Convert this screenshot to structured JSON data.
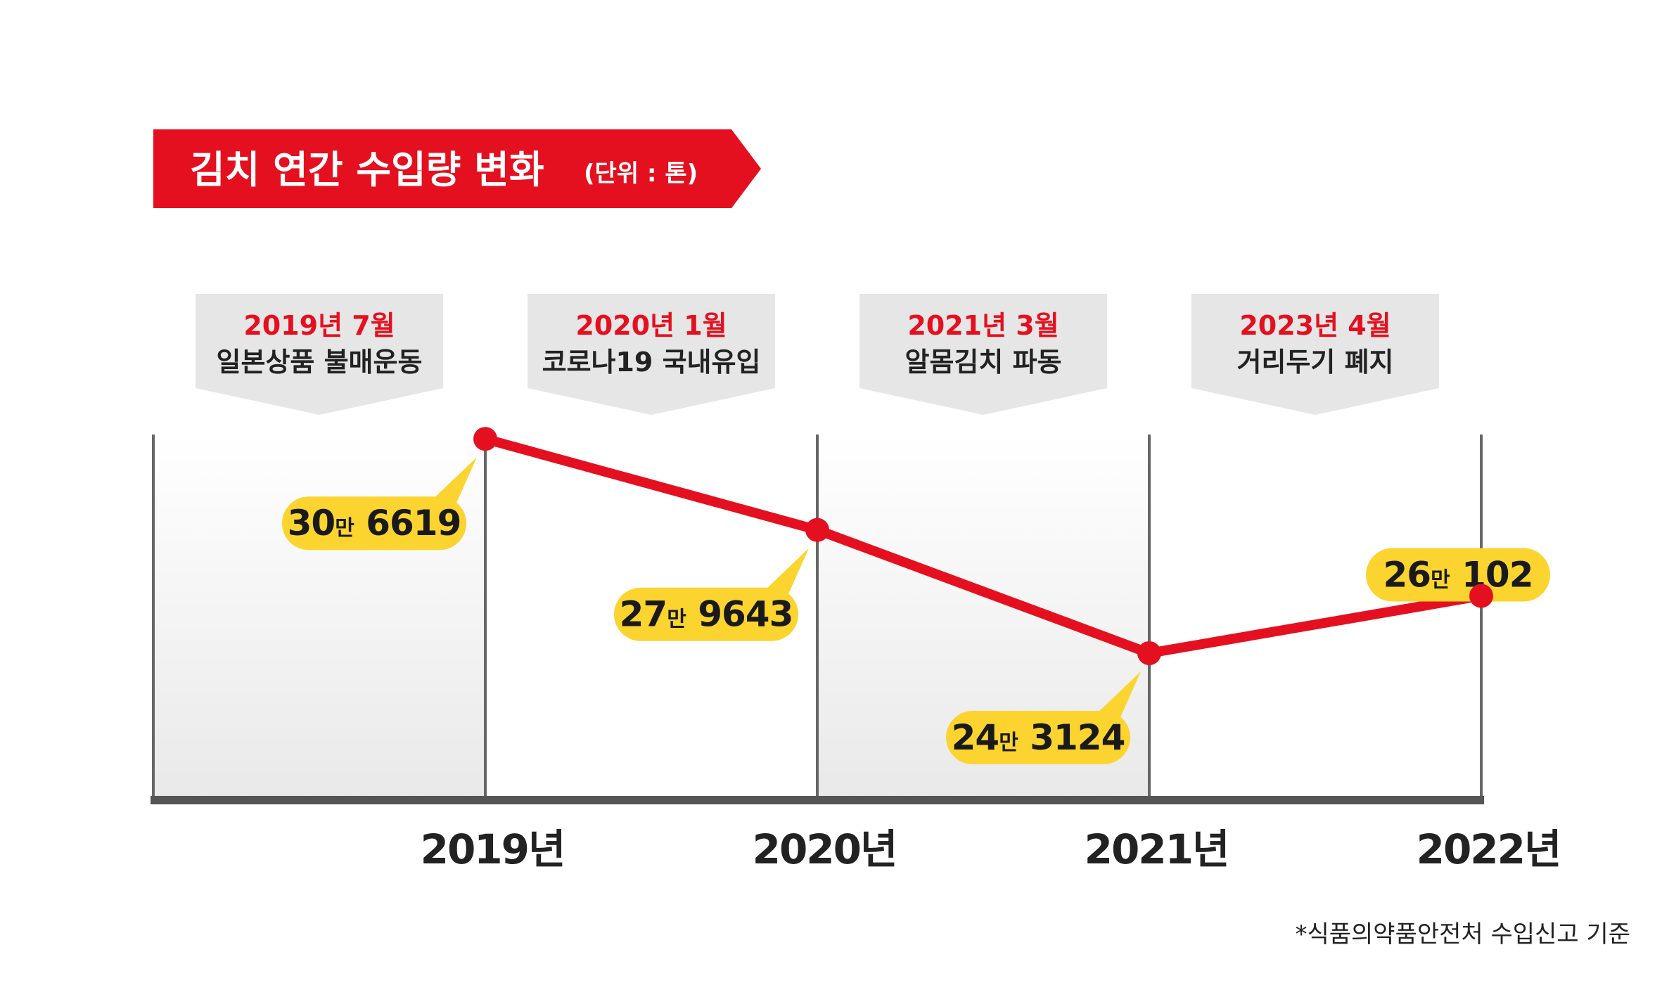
{
  "title": "김치 연간 수입량 변화",
  "unit_note": "(단위 : 톤)",
  "source": "*식품의약품안전처 수입신고 기준",
  "colors": {
    "accent": "#e5101f",
    "bubble": "#fcd42f",
    "event_box": "#e6e6e6",
    "axis": "#555555"
  },
  "events": [
    {
      "date": "2019년 7월",
      "text": "일본상품 불매운동"
    },
    {
      "date": "2020년 1월",
      "text": "코로나19 국내유입"
    },
    {
      "date": "2021년 3월",
      "text": "알몸김치 파동"
    },
    {
      "date": "2023년 4월",
      "text": "거리두기 폐지"
    }
  ],
  "chart_data": {
    "type": "line",
    "categories": [
      "2019년",
      "2020년",
      "2021년",
      "2022년"
    ],
    "values": [
      306619,
      279643,
      243124,
      260102
    ],
    "ylim": [
      200000,
      320000
    ],
    "grid": false,
    "labels": [
      {
        "main": "30",
        "unit": "만",
        "rest": " 6619"
      },
      {
        "main": "27",
        "unit": "만",
        "rest": " 9643"
      },
      {
        "main": "24",
        "unit": "만",
        "rest": " 3124"
      },
      {
        "main": "26",
        "unit": "만",
        "rest": " 102"
      }
    ]
  }
}
